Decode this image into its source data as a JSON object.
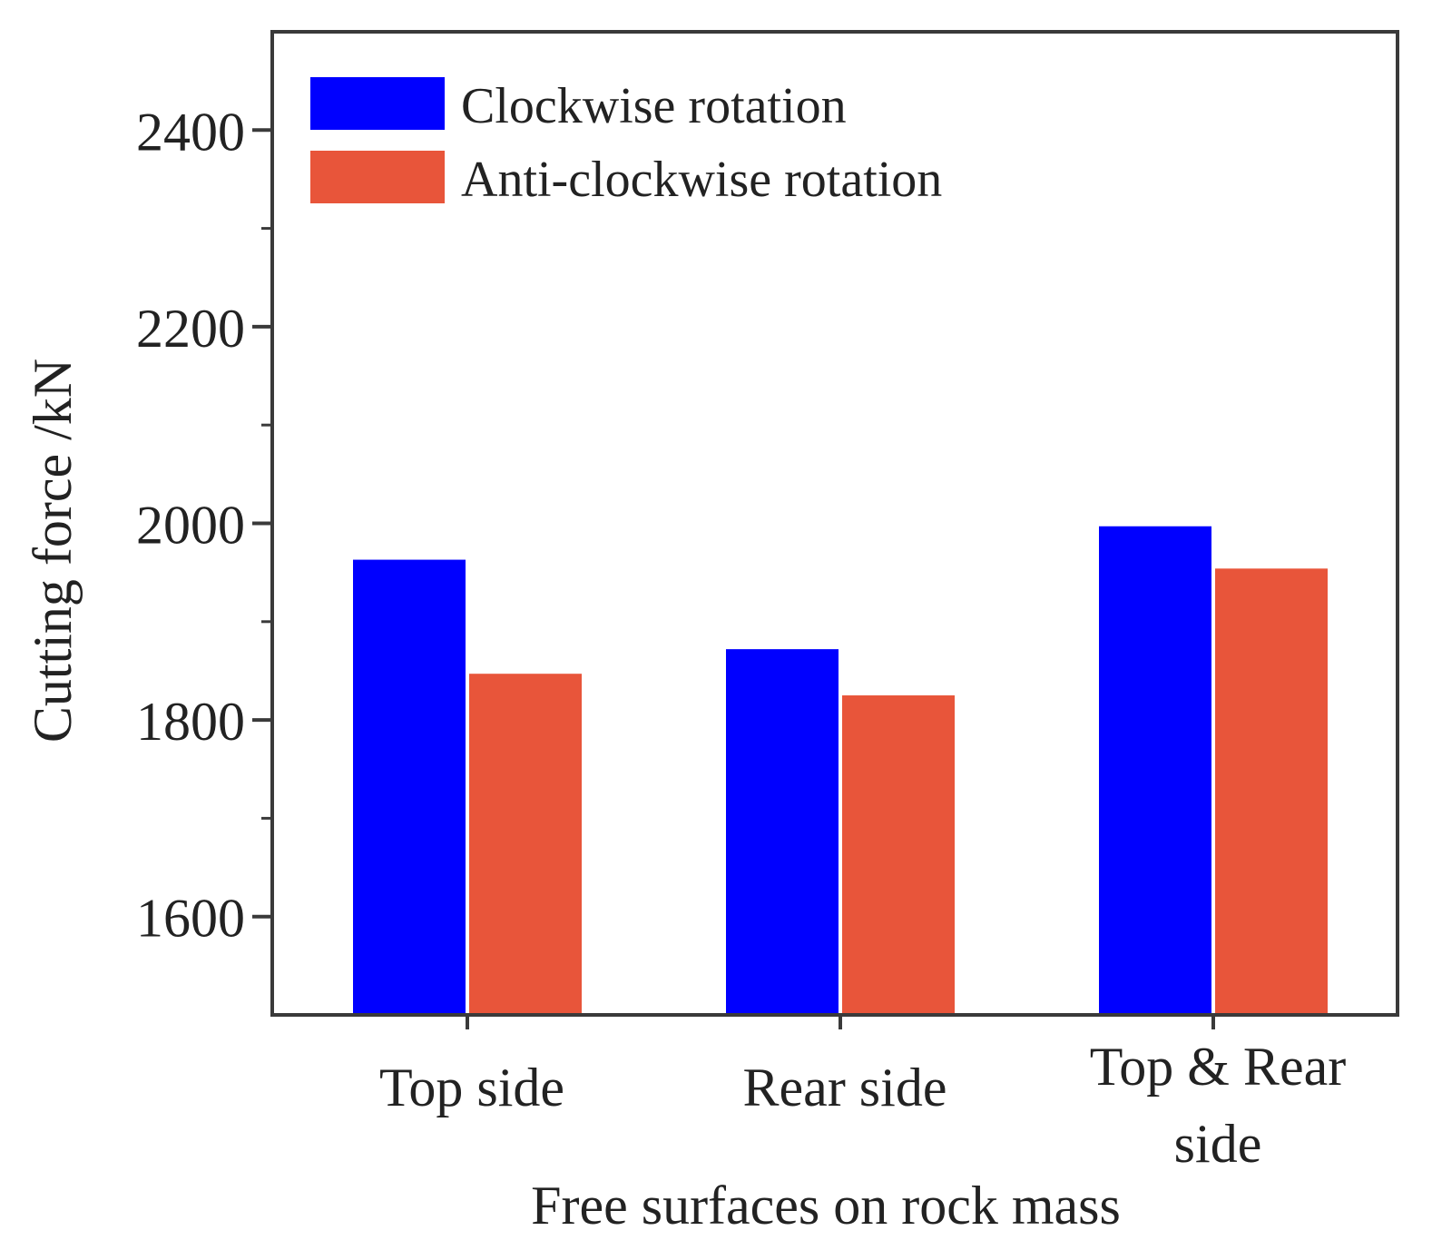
{
  "chart_data": {
    "type": "bar",
    "title": "",
    "xlabel": "Free surfaces on rock mass",
    "ylabel": "Cutting force /kN",
    "categories": [
      "Top side",
      "Rear side",
      "Top & Rear side"
    ],
    "category_label_lines": [
      [
        "Top side"
      ],
      [
        "Rear side"
      ],
      [
        "Top & Rear",
        "side"
      ]
    ],
    "series": [
      {
        "name": "Clockwise rotation",
        "color": "#0000ff",
        "values": [
          1963,
          1872,
          1997
        ]
      },
      {
        "name": "Anti-clockwise rotation",
        "color": "#e8553a",
        "values": [
          1847,
          1825,
          1954
        ]
      }
    ],
    "ylim": [
      1500,
      2500
    ],
    "yticks_major": [
      1600,
      1800,
      2000,
      2200,
      2400
    ],
    "yticks_minor": [
      1700,
      1900,
      2100,
      2300
    ],
    "grid": false,
    "legend_position": "top-left"
  }
}
